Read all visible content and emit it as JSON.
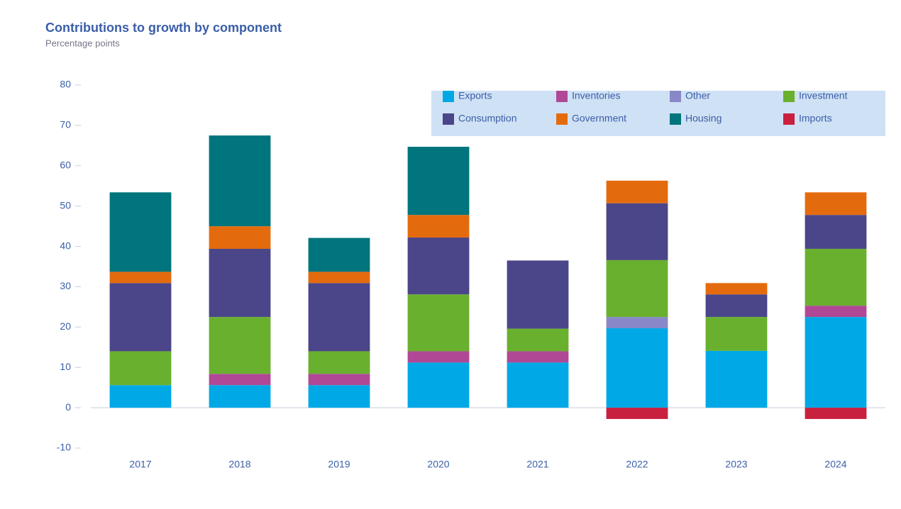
{
  "chart_data": {
    "type": "stacked_bar",
    "title": "Contributions to growth by component",
    "subtitle": "Percentage points",
    "categories": [
      "2017",
      "2018",
      "2019",
      "2020",
      "2021",
      "2022",
      "2023",
      "2024"
    ],
    "series": [
      {
        "name": "Exports",
        "color": "#00a9e6",
        "values": [
          5.6,
          5.6,
          5.6,
          11.2,
          11.2,
          19.7,
          14.1,
          22.5
        ]
      },
      {
        "name": "Inventories",
        "color": "#b04896",
        "values": [
          null,
          2.8,
          2.8,
          2.8,
          2.8,
          null,
          null,
          2.8
        ]
      },
      {
        "name": "Other",
        "color": "#8888c8",
        "values": [
          null,
          null,
          null,
          null,
          null,
          2.8,
          null,
          null
        ]
      },
      {
        "name": "Investment",
        "color": "#69b02e",
        "values": [
          8.4,
          14.1,
          5.6,
          14.1,
          5.6,
          14.1,
          8.4,
          14.1
        ]
      },
      {
        "name": "Consumption",
        "color": "#4b4589",
        "values": [
          16.9,
          16.9,
          16.9,
          14.1,
          16.9,
          14.1,
          5.6,
          8.4
        ]
      },
      {
        "name": "Government",
        "color": "#e46b0d",
        "values": [
          2.8,
          5.6,
          2.8,
          5.6,
          null,
          5.6,
          2.8,
          5.6
        ]
      },
      {
        "name": "Housing",
        "color": "#00757d",
        "values": [
          19.7,
          22.5,
          8.4,
          16.9,
          null,
          null,
          null,
          null
        ]
      },
      {
        "name": "Imports",
        "color": "#c8203f",
        "values": [
          null,
          null,
          null,
          null,
          null,
          -2.8,
          null,
          -2.8
        ]
      }
    ],
    "ylim": [
      -10,
      80
    ],
    "yticks": [
      -10,
      0,
      10,
      20,
      30,
      40,
      50,
      60,
      70,
      80
    ]
  }
}
